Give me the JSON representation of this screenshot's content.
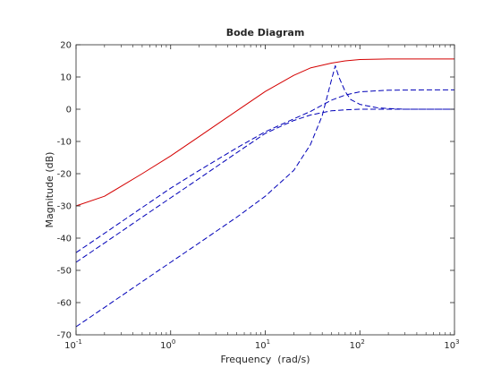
{
  "chart_data": {
    "type": "line",
    "title": "Bode Diagram",
    "xlabel": "Frequency  (rad/s)",
    "ylabel": "Magnitude (dB)",
    "xscale": "log",
    "xlim": [
      0.1,
      1000
    ],
    "ylim": [
      -70,
      20
    ],
    "xticks": [
      {
        "value": 0.1,
        "base": "10",
        "exp": "-1"
      },
      {
        "value": 1,
        "base": "10",
        "exp": "0"
      },
      {
        "value": 10,
        "base": "10",
        "exp": "1"
      },
      {
        "value": 100,
        "base": "10",
        "exp": "2"
      },
      {
        "value": 1000,
        "base": "10",
        "exp": "3"
      }
    ],
    "yticks": [
      20,
      10,
      0,
      -10,
      -20,
      -30,
      -40,
      -50,
      -60,
      -70
    ],
    "grid": false,
    "series": [
      {
        "color": "#d40000",
        "style": "solid",
        "x": [
          0.1,
          0.2,
          0.5,
          1,
          2,
          5,
          10,
          20,
          30,
          50,
          70,
          100,
          200,
          500,
          1000
        ],
        "y": [
          -30,
          -27,
          -20,
          -14.5,
          -8.5,
          -0.5,
          5.5,
          10.5,
          12.8,
          14.3,
          15,
          15.4,
          15.6,
          15.6,
          15.6
        ]
      },
      {
        "color": "#0000b8",
        "style": "dashed",
        "x": [
          0.1,
          0.2,
          0.5,
          1,
          2,
          5,
          10,
          20,
          30,
          50,
          70,
          100,
          200,
          500,
          1000
        ],
        "y": [
          -44.5,
          -38.5,
          -30.5,
          -24.5,
          -19,
          -12,
          -7,
          -3,
          -0.7,
          2.8,
          4.4,
          5.4,
          5.9,
          6,
          6
        ]
      },
      {
        "color": "#0000b8",
        "style": "dashed",
        "x": [
          0.1,
          0.2,
          0.5,
          1,
          2,
          5,
          10,
          20,
          30,
          50,
          70,
          100,
          200,
          500,
          1000
        ],
        "y": [
          -47.5,
          -41.5,
          -33.5,
          -27.5,
          -21.5,
          -13.5,
          -7.5,
          -3.5,
          -1.8,
          -0.5,
          -0.2,
          0,
          0,
          0,
          0
        ]
      },
      {
        "color": "#0000b8",
        "style": "dashed",
        "x": [
          0.1,
          0.2,
          0.5,
          1,
          2,
          5,
          10,
          20,
          30,
          40,
          50,
          55,
          60,
          70,
          80,
          100,
          150,
          200,
          300,
          1000
        ],
        "y": [
          -67.5,
          -61.5,
          -53.5,
          -47.5,
          -41.5,
          -33.5,
          -27,
          -19,
          -11,
          -2,
          9,
          13.5,
          10,
          5.5,
          3,
          1.5,
          0.5,
          0.2,
          0,
          0
        ]
      }
    ]
  }
}
